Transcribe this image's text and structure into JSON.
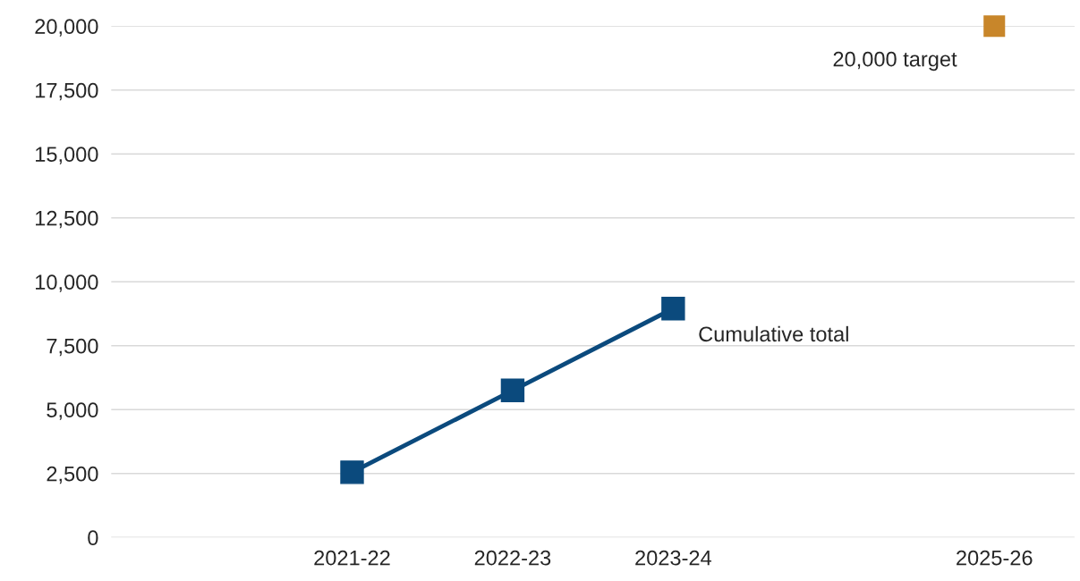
{
  "chart_data": {
    "type": "line",
    "categories": [
      null,
      "2021-22",
      "2022-23",
      "2023-24",
      null,
      "2025-26"
    ],
    "series": [
      {
        "name": "Cumulative total",
        "color": "#0b4a7d",
        "values": [
          null,
          2550,
          5750,
          8950,
          null,
          null
        ]
      },
      {
        "name": "20,000 target",
        "type": "scatter",
        "color": "#c8862a",
        "values": [
          null,
          null,
          null,
          null,
          null,
          20000
        ]
      }
    ],
    "ylim": [
      0,
      20000
    ],
    "yticks": [
      {
        "value": 0,
        "label": "0"
      },
      {
        "value": 2500,
        "label": "2,500"
      },
      {
        "value": 5000,
        "label": "5,000"
      },
      {
        "value": 7500,
        "label": "7,500"
      },
      {
        "value": 10000,
        "label": "10,000"
      },
      {
        "value": 12500,
        "label": "12,500"
      },
      {
        "value": 15000,
        "label": "15,000"
      },
      {
        "value": 17500,
        "label": "17,500"
      },
      {
        "value": 20000,
        "label": "20,000"
      }
    ],
    "grid": "y",
    "marker": "square",
    "line_style": "solid",
    "legend": false
  }
}
